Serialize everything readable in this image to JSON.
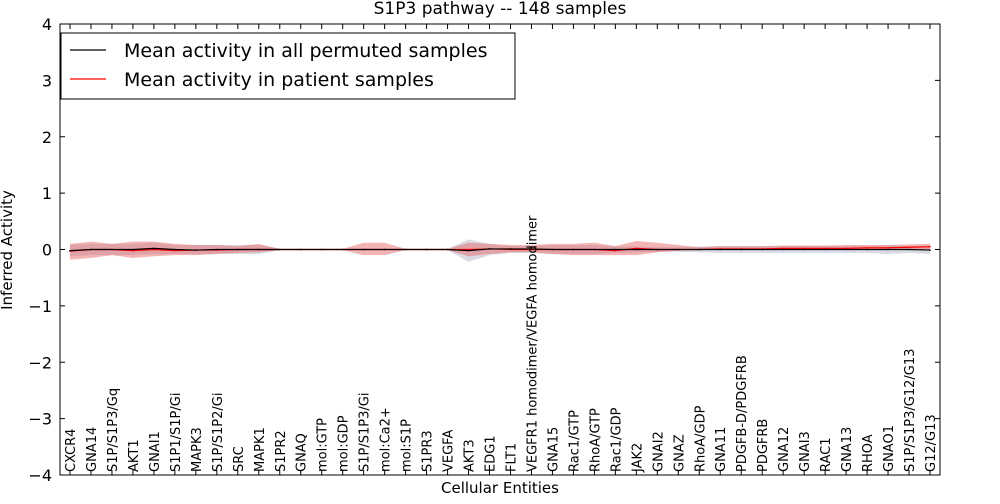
{
  "chart_data": {
    "type": "line",
    "title": "S1P3 pathway -- 148 samples",
    "xlabel": "Cellular Entities",
    "ylabel": "Inferred Activity",
    "ylim": [
      -4,
      4
    ],
    "yticks": [
      {
        "value": 4,
        "label": "4"
      },
      {
        "value": 3,
        "label": "3"
      },
      {
        "value": 2,
        "label": "2"
      },
      {
        "value": 1,
        "label": "1"
      },
      {
        "value": 0,
        "label": "0"
      },
      {
        "value": -1,
        "label": "−1"
      },
      {
        "value": -2,
        "label": "−2"
      },
      {
        "value": -3,
        "label": "−3"
      },
      {
        "value": -4,
        "label": "−4"
      }
    ],
    "grid": false,
    "legend_position": "top-left",
    "categories": [
      "CXCR4",
      "GNA14",
      "S1P/S1P3/Gq",
      "AKT1",
      "GNAI1",
      "S1P1/S1P/Gi",
      "MAPK3",
      "S1P/S1P2/Gi",
      "SRC",
      "MAPK1",
      "S1PR2",
      "GNAQ",
      "mol:GTP",
      "mol:GDP",
      "S1P/S1P3/Gi",
      "mol:Ca2+",
      "mol:S1P",
      "S1PR3",
      "VEGFA",
      "AKT3",
      "EDG1",
      "FLT1",
      "VEGFR1 homodimer/VEGFA homodimer",
      "GNA15",
      "Rac1/GTP",
      "RhoA/GTP",
      "Rac1/GDP",
      "JAK2",
      "GNAI2",
      "GNAZ",
      "RhoA/GDP",
      "GNA11",
      "PDGFB-D/PDGFRB",
      "PDGFRB",
      "GNA12",
      "GNAI3",
      "RAC1",
      "GNA13",
      "RHOA",
      "GNAO1",
      "S1P/S1P3/G12/G13",
      "G12/G13"
    ],
    "series": [
      {
        "name": "Mean activity in all permuted samples",
        "color": "#000000",
        "band_color": "#bbbbcc",
        "values": [
          -0.02,
          0.0,
          0.0,
          0.0,
          0.02,
          0.0,
          -0.01,
          0.0,
          0.0,
          0.0,
          0.0,
          0.0,
          0.0,
          0.0,
          0.0,
          0.0,
          0.0,
          0.0,
          0.0,
          -0.02,
          0.01,
          0.01,
          0.01,
          0.0,
          0.0,
          0.0,
          0.0,
          0.0,
          0.0,
          0.0,
          0.0,
          0.0,
          0.0,
          0.0,
          0.0,
          0.0,
          0.0,
          0.0,
          0.0,
          0.0,
          0.0,
          -0.01
        ],
        "band_lower": [
          -0.12,
          -0.1,
          -0.1,
          -0.1,
          -0.08,
          -0.08,
          -0.08,
          -0.08,
          -0.08,
          -0.08,
          -0.01,
          -0.01,
          -0.01,
          -0.01,
          -0.01,
          -0.01,
          -0.01,
          -0.01,
          -0.01,
          -0.22,
          -0.1,
          -0.06,
          -0.06,
          -0.08,
          -0.08,
          -0.08,
          -0.06,
          -0.05,
          -0.04,
          -0.04,
          -0.05,
          -0.06,
          -0.06,
          -0.06,
          -0.06,
          -0.06,
          -0.06,
          -0.06,
          -0.06,
          -0.08,
          -0.06,
          -0.08
        ],
        "band_upper": [
          0.08,
          0.1,
          0.1,
          0.1,
          0.12,
          0.08,
          0.08,
          0.08,
          0.08,
          0.08,
          0.01,
          0.01,
          0.01,
          0.01,
          0.01,
          0.01,
          0.01,
          0.01,
          0.01,
          0.18,
          0.1,
          0.06,
          0.06,
          0.08,
          0.08,
          0.08,
          0.06,
          0.05,
          0.04,
          0.04,
          0.05,
          0.06,
          0.06,
          0.06,
          0.06,
          0.06,
          0.06,
          0.06,
          0.06,
          0.08,
          0.06,
          0.06
        ]
      },
      {
        "name": "Mean activity in patient samples",
        "color": "#ff0000",
        "band_color": "#e66a6a",
        "values": [
          -0.03,
          0.0,
          0.0,
          -0.02,
          0.0,
          -0.02,
          -0.01,
          -0.01,
          0.0,
          0.0,
          0.0,
          0.0,
          0.0,
          0.0,
          0.0,
          0.0,
          0.0,
          0.0,
          0.0,
          0.0,
          0.01,
          0.0,
          0.0,
          0.0,
          0.0,
          0.0,
          -0.02,
          0.02,
          0.0,
          0.0,
          0.0,
          0.01,
          0.01,
          0.01,
          0.02,
          0.02,
          0.02,
          0.02,
          0.03,
          0.03,
          0.04,
          0.05
        ],
        "band_lower": [
          -0.18,
          -0.15,
          -0.1,
          -0.15,
          -0.12,
          -0.1,
          -0.1,
          -0.08,
          -0.06,
          -0.05,
          -0.01,
          -0.01,
          -0.01,
          -0.01,
          -0.1,
          -0.1,
          -0.01,
          -0.01,
          -0.01,
          -0.12,
          -0.08,
          -0.05,
          -0.05,
          -0.08,
          -0.1,
          -0.1,
          -0.1,
          -0.1,
          -0.05,
          -0.02,
          -0.01,
          0.0,
          0.0,
          0.0,
          0.0,
          0.0,
          0.0,
          0.0,
          0.0,
          0.0,
          0.0,
          0.0
        ],
        "band_upper": [
          0.1,
          0.14,
          0.1,
          0.14,
          0.14,
          0.1,
          0.08,
          0.08,
          0.06,
          0.1,
          0.01,
          0.01,
          0.01,
          0.01,
          0.12,
          0.12,
          0.01,
          0.01,
          0.01,
          0.12,
          0.1,
          0.08,
          0.08,
          0.1,
          0.1,
          0.12,
          0.06,
          0.15,
          0.12,
          0.08,
          0.04,
          0.06,
          0.06,
          0.06,
          0.07,
          0.07,
          0.07,
          0.08,
          0.08,
          0.08,
          0.09,
          0.1
        ]
      }
    ]
  }
}
